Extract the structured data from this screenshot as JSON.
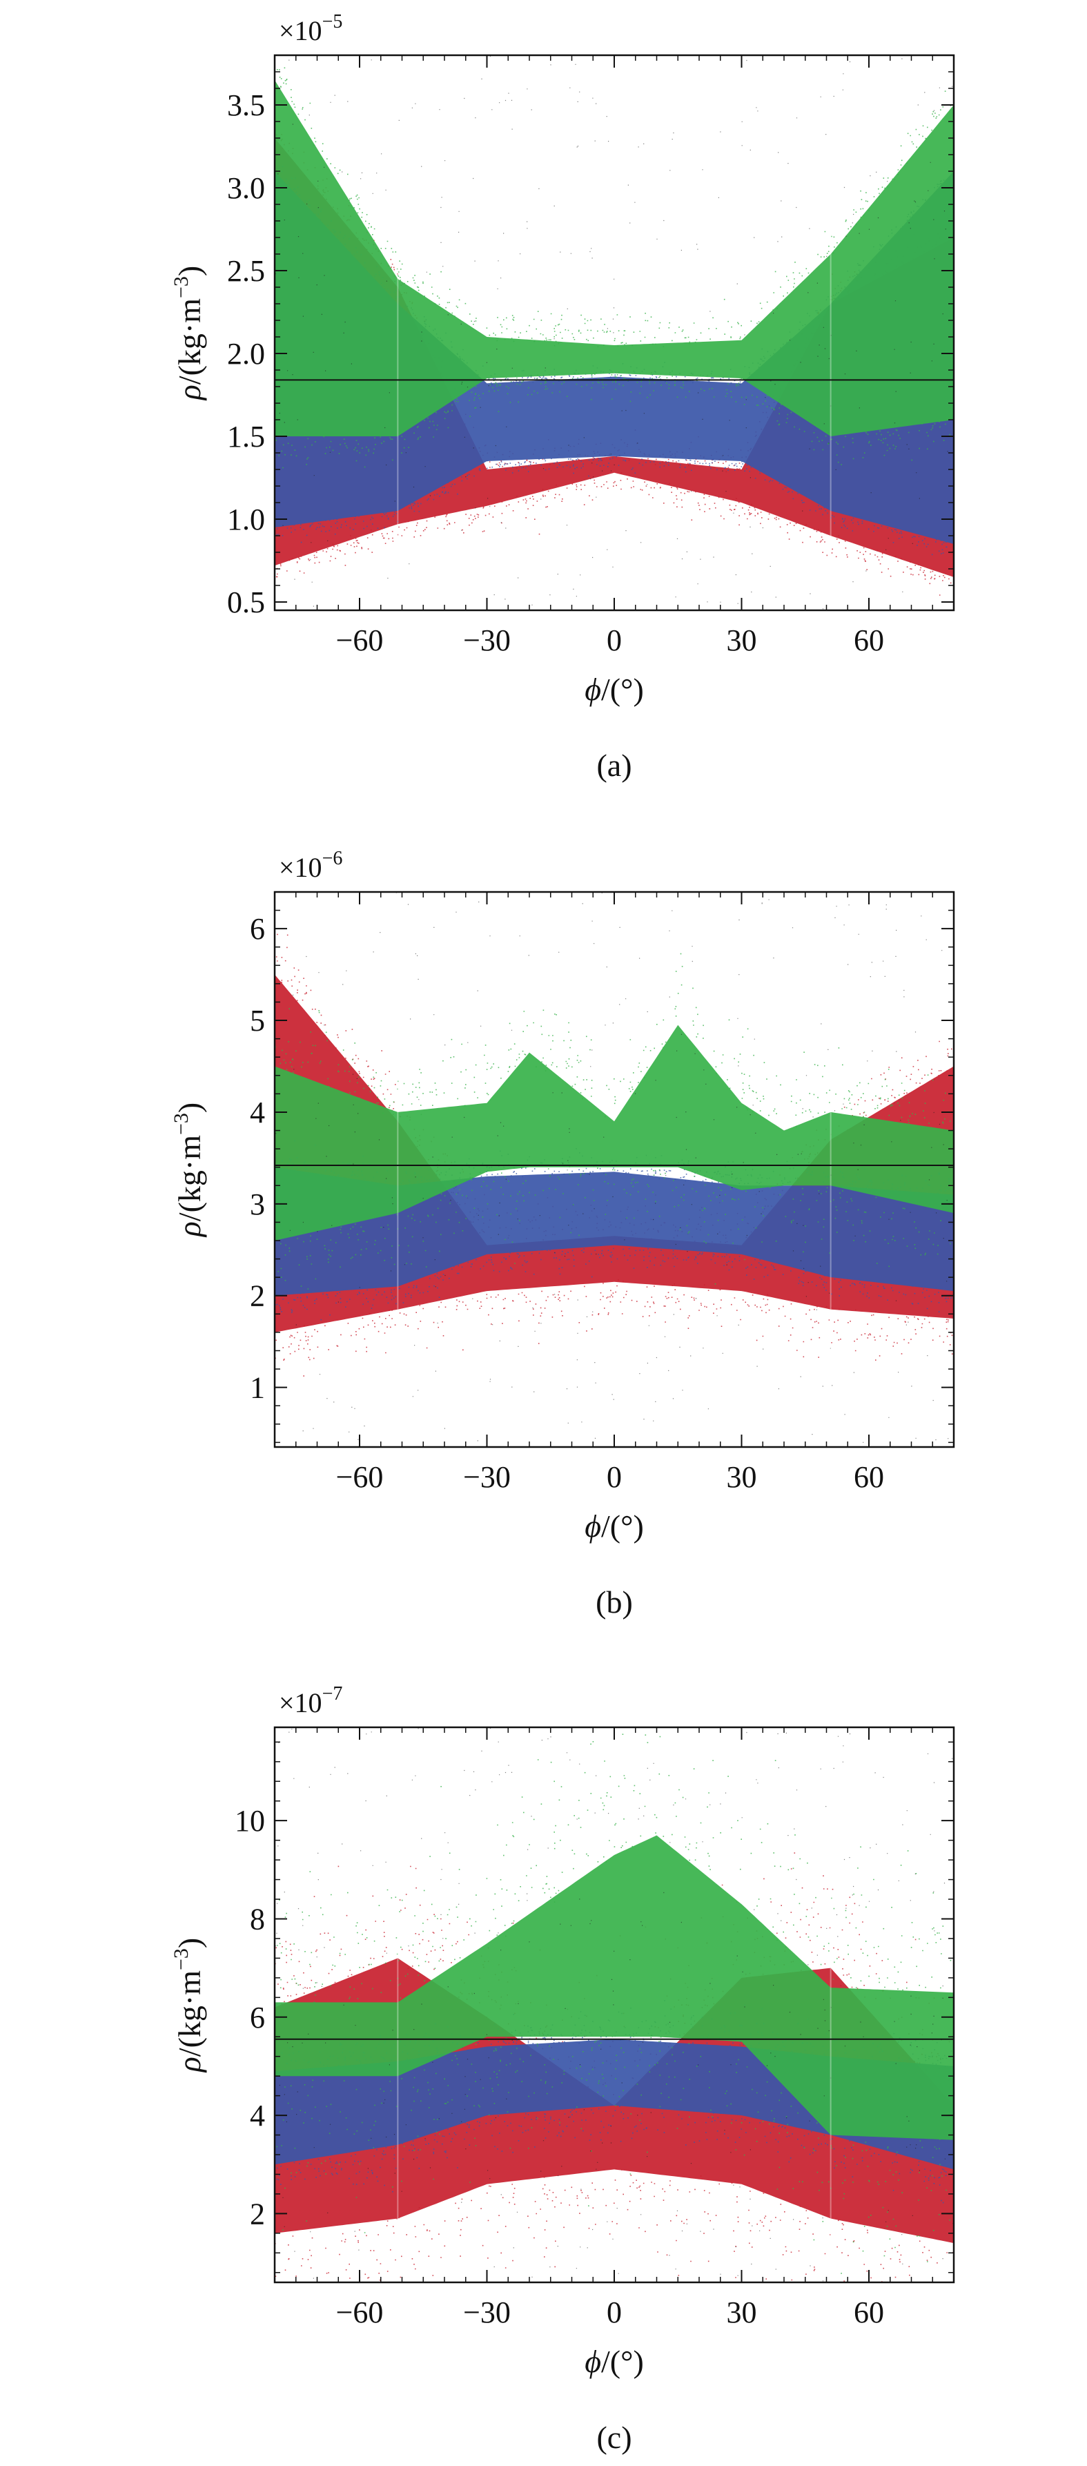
{
  "chart_data": [
    {
      "type": "scatter",
      "panel_label": "(a)",
      "multiplier": {
        "base": "×10",
        "exp": "−5"
      },
      "xlabel": {
        "sym": "ϕ",
        "unit": "/(°)"
      },
      "ylabel": {
        "sym": "ρ",
        "pre": "/(kg·m",
        "exp": "−3",
        "post": ")"
      },
      "xlim": [
        -80,
        80
      ],
      "ylim": [
        0.45,
        3.8
      ],
      "xticks": [
        -60,
        -30,
        0,
        30,
        60
      ],
      "xtick_labels": [
        "−60",
        "−30",
        "0",
        "30",
        "60"
      ],
      "yticks": [
        0.5,
        1.0,
        1.5,
        2.0,
        2.5,
        3.0,
        3.5
      ],
      "ytick_labels": [
        "0.5",
        "1.0",
        "1.5",
        "2.0",
        "2.5",
        "3.0",
        "3.5"
      ],
      "ref_line_y": 1.84,
      "colors": {
        "red": "#c8202e",
        "blue": "#3a56a8",
        "green": "#37b24a",
        "black": "#1a1a1a"
      },
      "series": [
        {
          "color": "red",
          "band": true,
          "jump": true,
          "noise": 0.05,
          "x": [
            -80,
            -51,
            -30,
            0,
            30,
            51,
            80
          ],
          "upper": [
            3.3,
            2.4,
            1.3,
            1.38,
            1.3,
            2.3,
            2.7
          ],
          "lower": [
            0.72,
            0.97,
            1.08,
            1.28,
            1.1,
            0.9,
            0.65
          ]
        },
        {
          "color": "blue",
          "band": true,
          "jump": true,
          "noise": 0.03,
          "x": [
            -80,
            -51,
            -30,
            0,
            30,
            51,
            80
          ],
          "upper": [
            3.1,
            2.3,
            1.82,
            1.86,
            1.82,
            2.3,
            3.1
          ],
          "lower": [
            0.95,
            1.05,
            1.35,
            1.38,
            1.35,
            1.05,
            0.85
          ]
        },
        {
          "color": "green",
          "band": true,
          "jump": true,
          "noise": 0.06,
          "x": [
            -80,
            -51,
            -30,
            0,
            30,
            51,
            80
          ],
          "upper": [
            3.65,
            2.45,
            2.1,
            2.05,
            2.08,
            2.6,
            3.5
          ],
          "lower": [
            1.5,
            1.5,
            1.85,
            1.88,
            1.85,
            1.5,
            1.6
          ]
        }
      ]
    },
    {
      "type": "scatter",
      "panel_label": "(b)",
      "multiplier": {
        "base": "×10",
        "exp": "−6"
      },
      "xlabel": {
        "sym": "ϕ",
        "unit": "/(°)"
      },
      "ylabel": {
        "sym": "ρ",
        "pre": "/(kg·m",
        "exp": "−3",
        "post": ")"
      },
      "xlim": [
        -80,
        80
      ],
      "ylim": [
        0.35,
        6.4
      ],
      "xticks": [
        -60,
        -30,
        0,
        30,
        60
      ],
      "xtick_labels": [
        "−60",
        "−30",
        "0",
        "30",
        "60"
      ],
      "yticks": [
        1,
        2,
        3,
        4,
        5,
        6
      ],
      "ytick_labels": [
        "1",
        "2",
        "3",
        "4",
        "5",
        "6"
      ],
      "ref_line_y": 3.42,
      "colors": {
        "red": "#c8202e",
        "blue": "#3a56a8",
        "green": "#37b24a",
        "black": "#1a1a1a"
      },
      "series": [
        {
          "color": "red",
          "band": true,
          "jump": true,
          "noise": 0.1,
          "x": [
            -80,
            -51,
            -30,
            0,
            30,
            51,
            80
          ],
          "upper": [
            5.5,
            3.9,
            2.55,
            2.65,
            2.55,
            3.7,
            4.5
          ],
          "lower": [
            1.6,
            1.85,
            2.05,
            2.15,
            2.05,
            1.85,
            1.75
          ]
        },
        {
          "color": "blue",
          "band": true,
          "jump": true,
          "noise": 0.05,
          "x": [
            -80,
            -51,
            -30,
            0,
            30,
            51,
            80
          ],
          "upper": [
            3.4,
            3.2,
            3.3,
            3.35,
            3.2,
            3.2,
            3.1
          ],
          "lower": [
            2.0,
            2.1,
            2.45,
            2.55,
            2.45,
            2.2,
            2.05
          ]
        },
        {
          "color": "green",
          "band": true,
          "jump": true,
          "noise": 0.15,
          "x": [
            -80,
            -51,
            -30,
            -20,
            0,
            15,
            30,
            40,
            51,
            80
          ],
          "upper": [
            4.5,
            4.0,
            4.1,
            4.65,
            3.9,
            4.95,
            4.1,
            3.8,
            4.0,
            3.8
          ],
          "lower": [
            2.6,
            2.9,
            3.35,
            3.4,
            3.4,
            3.4,
            3.15,
            3.2,
            3.2,
            2.9
          ]
        }
      ]
    },
    {
      "type": "scatter",
      "panel_label": "(c)",
      "multiplier": {
        "base": "×10",
        "exp": "−7"
      },
      "xlabel": {
        "sym": "ϕ",
        "unit": "/(°)"
      },
      "ylabel": {
        "sym": "ρ",
        "pre": "/(kg·m",
        "exp": "−3",
        "post": ")"
      },
      "xlim": [
        -80,
        80
      ],
      "ylim": [
        0.6,
        11.9
      ],
      "xticks": [
        -60,
        -30,
        0,
        30,
        60
      ],
      "xtick_labels": [
        "−60",
        "−30",
        "0",
        "30",
        "60"
      ],
      "yticks": [
        2,
        4,
        6,
        8,
        10
      ],
      "ytick_labels": [
        "2",
        "4",
        "6",
        "8",
        "10"
      ],
      "ref_line_y": 5.55,
      "colors": {
        "red": "#c8202e",
        "blue": "#3a56a8",
        "green": "#37b24a",
        "black": "#1a1a1a"
      },
      "series": [
        {
          "color": "red",
          "band": true,
          "jump": true,
          "noise": 0.25,
          "x": [
            -80,
            -51,
            -30,
            0,
            30,
            51,
            80
          ],
          "upper": [
            6.2,
            7.2,
            6.0,
            4.2,
            6.8,
            7.0,
            4.2
          ],
          "lower": [
            1.6,
            1.9,
            2.6,
            2.9,
            2.6,
            1.9,
            1.4
          ]
        },
        {
          "color": "blue",
          "band": true,
          "jump": true,
          "noise": 0.08,
          "x": [
            -80,
            -51,
            -30,
            0,
            30,
            51,
            80
          ],
          "upper": [
            4.9,
            5.1,
            5.4,
            5.55,
            5.4,
            5.2,
            5.0
          ],
          "lower": [
            3.0,
            3.4,
            4.0,
            4.2,
            4.0,
            3.6,
            2.9
          ]
        },
        {
          "color": "green",
          "band": true,
          "jump": true,
          "noise": 0.3,
          "x": [
            -80,
            -51,
            -30,
            0,
            10,
            30,
            51,
            80
          ],
          "upper": [
            6.3,
            6.3,
            7.5,
            9.3,
            9.7,
            8.3,
            6.6,
            6.5
          ],
          "lower": [
            4.8,
            4.8,
            5.6,
            5.6,
            5.6,
            5.5,
            3.6,
            3.5
          ]
        }
      ]
    }
  ]
}
